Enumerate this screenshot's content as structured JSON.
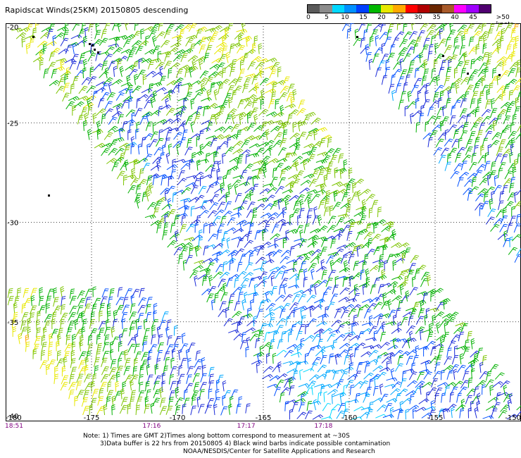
{
  "title": "Rapidscat Winds(25KM) 20150805 descending",
  "scale": {
    "labels": [
      "0",
      "5",
      "10",
      "15",
      "20",
      "25",
      "30",
      "35",
      "40",
      "45",
      ">50 knots"
    ],
    "colors": [
      "#5a5a5a",
      "#8c8c8c",
      "#00d8ff",
      "#0090ff",
      "#0040ff",
      "#00b800",
      "#e8e800",
      "#ffaa00",
      "#ff0000",
      "#b00000",
      "#6a2600",
      "#a85a2a",
      "#ff00ff",
      "#a000ff",
      "#500070"
    ]
  },
  "map": {
    "lat_labels": [
      "-20",
      "-25",
      "-30",
      "-35",
      "-40"
    ],
    "lon_labels": [
      "-180",
      "-175",
      "-170",
      "-165",
      "-160",
      "-155",
      "-150"
    ],
    "time_labels": [
      {
        "text": "18:51",
        "lon": -180
      },
      {
        "text": "17:16",
        "lon": -171.5
      },
      {
        "text": "17:17",
        "lon": -166
      },
      {
        "text": "17:18",
        "lon": -161.5
      }
    ]
  },
  "notes": {
    "line1": "Note: 1) Times are GMT 2)Times along bottom correspond to measurement at ~30S",
    "line2": "3)Data buffer is 22 hrs from 20150805 4) Black wind barbs indicate possible contamination",
    "line3": "NOAA/NESDIS/Center for Satellite Applications and Research"
  }
}
